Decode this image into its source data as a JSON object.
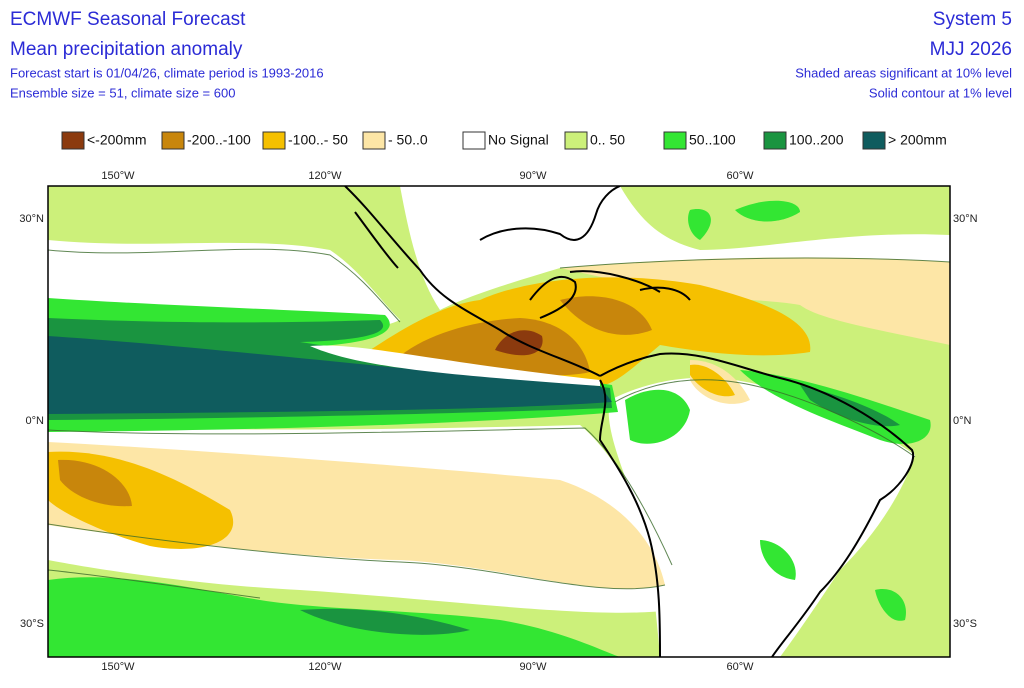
{
  "header": {
    "title": "ECMWF Seasonal Forecast",
    "subtitle": "Mean precipitation anomaly",
    "info": [
      "Forecast start is 01/04/26, climate period is 1993-2016",
      "Ensemble size = 51, climate size = 600"
    ],
    "system": "System 5",
    "period": "MJJ 2026",
    "notes": [
      "Shaded areas significant at 10% level",
      "Solid contour at 1% level"
    ]
  },
  "legend": [
    {
      "label": "<-200mm",
      "color": "#8b3a0e"
    },
    {
      "label": "-200..-100",
      "color": "#c8860c"
    },
    {
      "label": "-100..- 50",
      "color": "#f5c000"
    },
    {
      "label": "- 50..0",
      "color": "#fde6a6"
    },
    {
      "label": "No Signal",
      "color": "#ffffff"
    },
    {
      "label": "0.. 50",
      "color": "#ccf07a"
    },
    {
      "label": "50..100",
      "color": "#33e633"
    },
    {
      "label": "100..200",
      "color": "#1a9440"
    },
    {
      "label": "> 200mm",
      "color": "#0f5c5e"
    }
  ],
  "map": {
    "lon_labels": [
      "150°W",
      "120°W",
      "90°W",
      "60°W"
    ],
    "lat_labels": [
      "30°N",
      "0°N",
      "30°S"
    ]
  }
}
